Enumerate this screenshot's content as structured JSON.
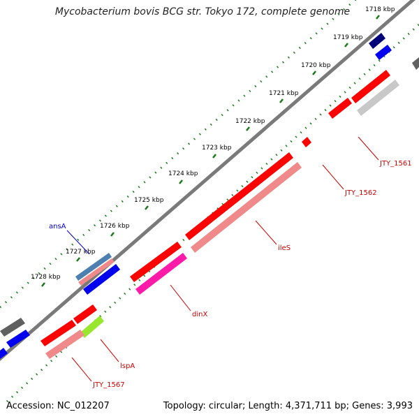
{
  "title": "Mycobacterium bovis BCG str. Tokyo 172, complete genome",
  "accession": "Accession: NC_012207",
  "summary": "Topology: circular; Length: 4,371,711 bp; Genes: 3,993",
  "ticks": [
    "1718 kbp",
    "1719 kbp",
    "1720 kbp",
    "1721 kbp",
    "1722 kbp",
    "1723 kbp",
    "1724 kbp",
    "1725 kbp",
    "1726 kbp",
    "1727 kbp",
    "1728 kbp"
  ],
  "genes": [
    "JTY_1561",
    "JTY_1562",
    "ileS",
    "dinX",
    "lspA",
    "JTY_1567",
    "ansA"
  ],
  "colors": {
    "backbone": "#7a7a7a",
    "cds_red": "#ff0000",
    "cds_pink": "#f08a8a",
    "blue": "#0000ee",
    "navy": "#00007a",
    "grey": "#606060",
    "lightgrey": "#c8c8c8",
    "magenta": "#ff1aa8",
    "lime": "#99e62e",
    "steel": "#4d7fb0",
    "tick_green": "#1a7a1a",
    "label_red": "#cc0000",
    "label_blue": "#0000cc"
  }
}
